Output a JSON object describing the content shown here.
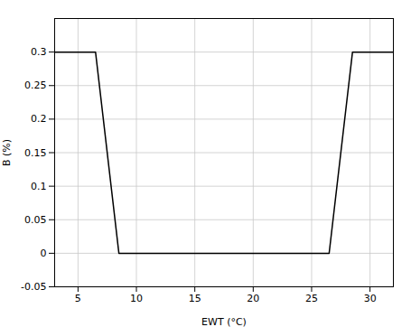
{
  "chart_data": {
    "type": "line",
    "x": [
      3.0,
      6.5,
      8.5,
      9.0,
      26.0,
      26.5,
      28.5,
      32.0
    ],
    "values": [
      0.3,
      0.3,
      0.0,
      0.0,
      0.0,
      0.0,
      0.3,
      0.3
    ],
    "color": "#000000",
    "xlim": [
      3,
      32
    ],
    "ylim": [
      -0.05,
      0.35
    ],
    "xticks": [
      5,
      10,
      15,
      20,
      25,
      30
    ],
    "yticks": [
      -0.05,
      0,
      0.05,
      0.1,
      0.15,
      0.2,
      0.25,
      0.3
    ],
    "xlabel": "EWT (°C)",
    "ylabel": "B (%)",
    "grid": true
  }
}
